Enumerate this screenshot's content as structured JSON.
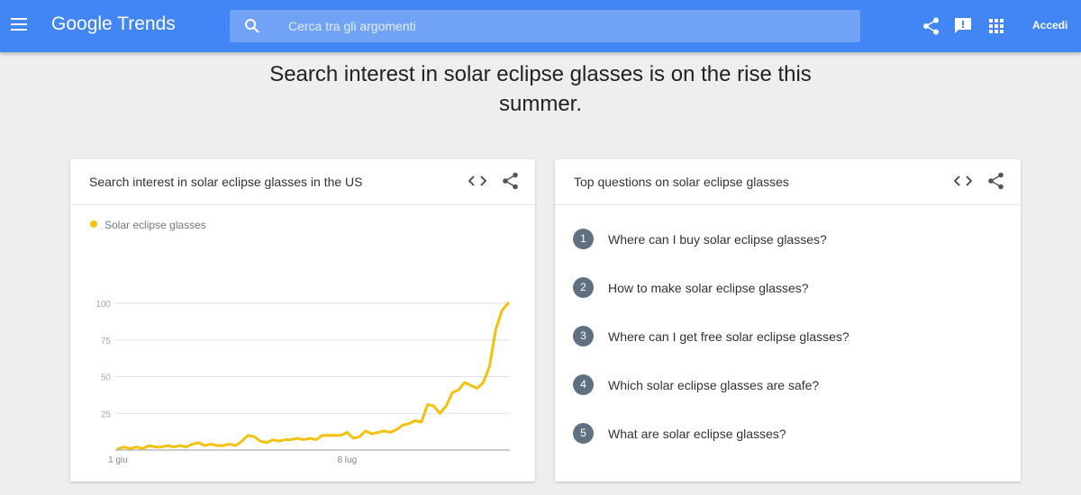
{
  "header": {
    "logo": "Google Trends",
    "search_placeholder": "Cerca tra gli argomenti",
    "sign_in": "Accedi"
  },
  "headline": "Search interest in solar eclipse glasses is on the rise this summer.",
  "chart_card": {
    "title": "Search interest in solar eclipse glasses in the US"
  },
  "chart_data": {
    "type": "line",
    "categories": [
      "1 giu",
      null,
      null,
      null,
      null,
      null,
      null,
      null,
      null,
      null,
      null,
      null,
      null,
      null,
      null,
      null,
      null,
      null,
      null,
      null,
      null,
      null,
      null,
      null,
      null,
      null,
      null,
      null,
      null,
      null,
      null,
      null,
      null,
      null,
      null,
      null,
      null,
      "8 lug",
      null,
      null,
      null,
      null,
      null,
      null,
      null,
      null,
      null,
      null,
      null,
      null,
      null,
      null,
      null,
      null,
      null,
      null,
      null,
      null,
      null,
      null,
      null,
      null,
      null,
      null
    ],
    "series": [
      {
        "name": "Solar eclipse glasses",
        "color": "#f4c20d",
        "values": [
          1,
          2,
          1,
          2,
          1,
          3,
          2,
          2,
          3,
          2,
          3,
          2,
          4,
          5,
          3,
          4,
          3,
          3,
          4,
          3,
          6,
          10,
          9,
          6,
          5,
          7,
          6,
          7,
          7,
          8,
          7,
          8,
          7,
          10,
          10,
          10,
          10,
          12,
          8,
          9,
          13,
          11,
          12,
          13,
          12,
          14,
          17,
          18,
          20,
          19,
          31,
          30,
          25,
          30,
          39,
          41,
          46,
          44,
          42,
          46,
          57,
          82,
          95,
          100
        ]
      }
    ],
    "ylim": [
      0,
      100
    ],
    "yticks": [
      25,
      50,
      75,
      100
    ],
    "grid": true
  },
  "questions_card": {
    "title": "Top questions on solar eclipse glasses",
    "items": [
      {
        "rank": "1",
        "text": "Where can I buy solar eclipse glasses?"
      },
      {
        "rank": "2",
        "text": "How to make solar eclipse glasses?"
      },
      {
        "rank": "3",
        "text": "Where can I get free solar eclipse glasses?"
      },
      {
        "rank": "4",
        "text": "Which solar eclipse glasses are safe?"
      },
      {
        "rank": "5",
        "text": "What are solar eclipse glasses?"
      }
    ]
  }
}
